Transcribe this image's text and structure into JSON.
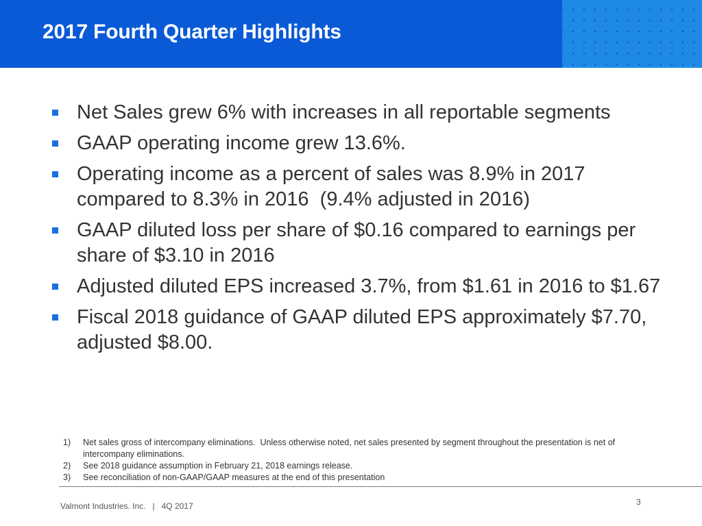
{
  "header": {
    "title": "2017 Fourth Quarter Highlights",
    "background_color": "#0a5ad7"
  },
  "bullets": [
    {
      "text": "Net Sales grew 6% with increases in all reportable segments"
    },
    {
      "text": "GAAP operating income grew 13.6%."
    },
    {
      "text": "Operating income as a percent of sales was 8.9% in 2017 compared to 8.3% in 2016  (9.4% adjusted in 2016)"
    },
    {
      "text": "GAAP diluted loss per share of $0.16 compared to earnings per share of $3.10 in 2016"
    },
    {
      "text": "Adjusted diluted EPS increased 3.7%, from $1.61 in 2016 to $1.67"
    },
    {
      "text": "Fiscal 2018 guidance of GAAP diluted EPS approximately $7.70, adjusted $8.00."
    }
  ],
  "bullet_color": "#1a6fe0",
  "footnotes": [
    {
      "num": "1)",
      "text": "Net sales gross of intercompany eliminations.  Unless otherwise noted, net sales presented by segment throughout the presentation is net of intercompany eliminations."
    },
    {
      "num": "2)",
      "text": "See 2018 guidance assumption in February 21, 2018 earnings release."
    },
    {
      "num": "3)",
      "text": "See reconciliation of non-GAAP/GAAP measures at the end of this presentation"
    }
  ],
  "footer": {
    "text": "Valmont Industries. Inc.   |   4Q 2017",
    "page_number": "3"
  }
}
